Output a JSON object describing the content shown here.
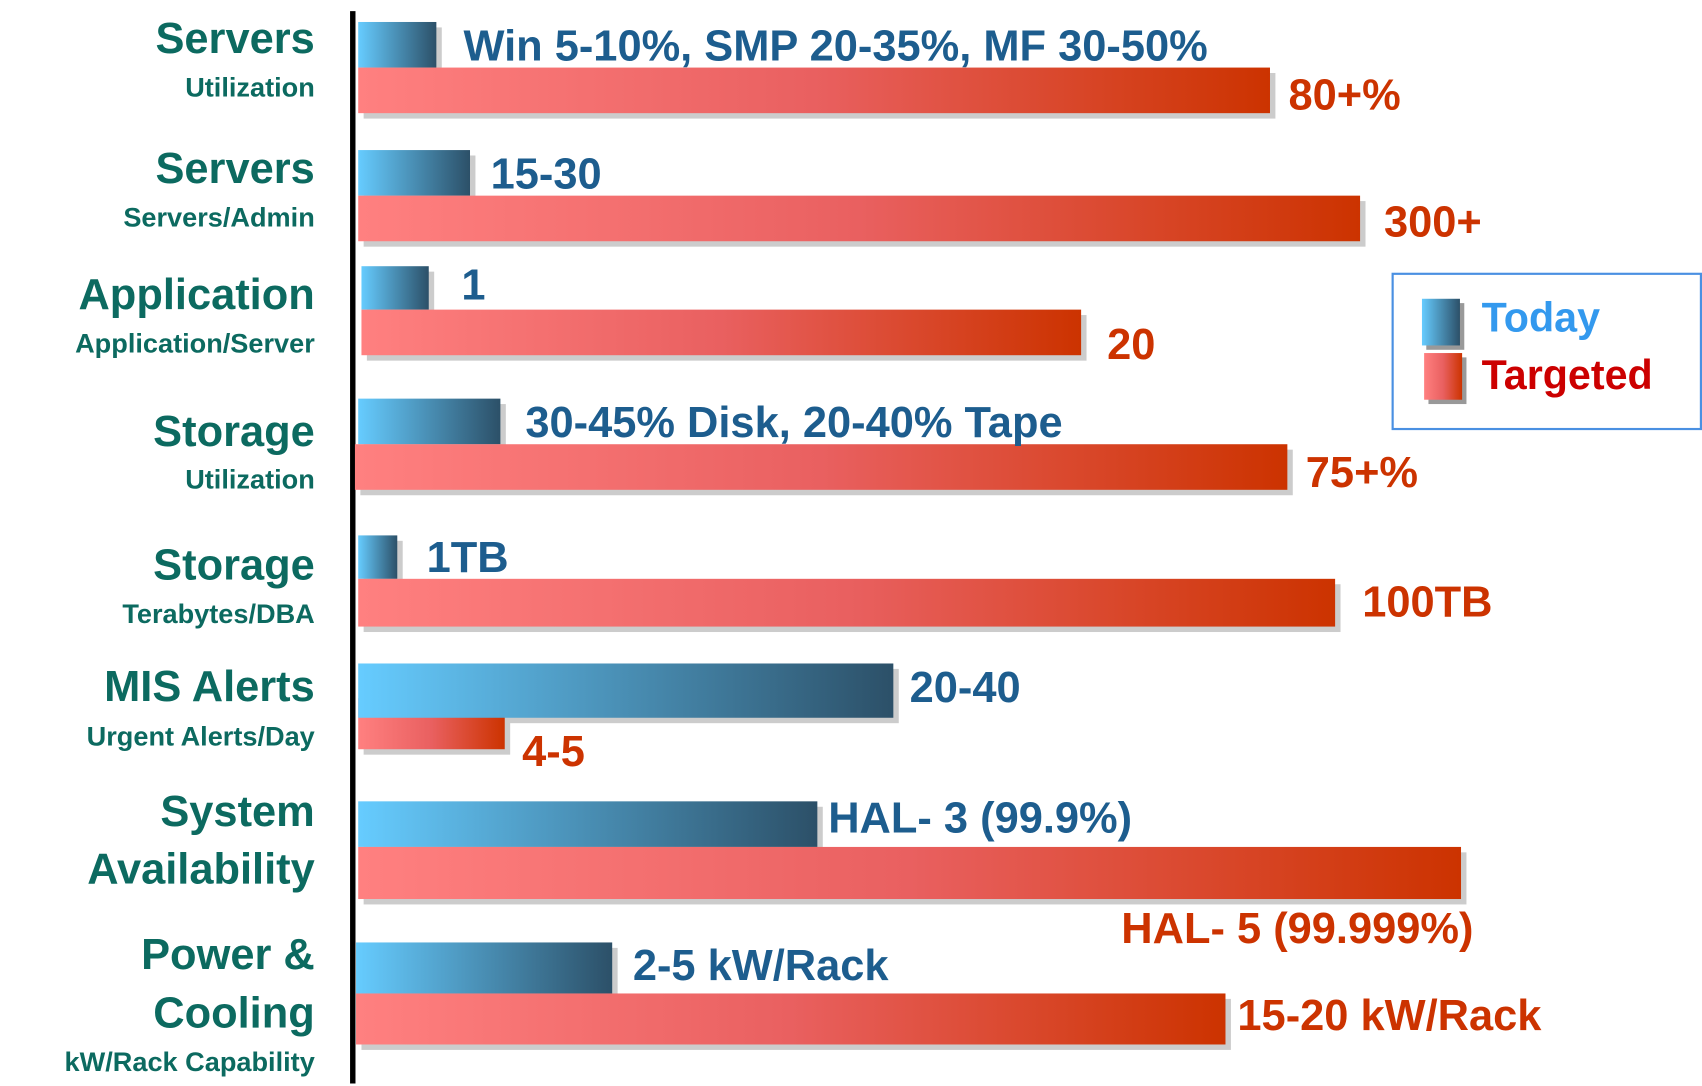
{
  "rows": [
    {
      "title_lines": [
        "Servers"
      ],
      "subtitle": "Utilization",
      "today": "Win 5-10%, SMP 20-35%, MF 30-50%",
      "targeted": "80+%"
    },
    {
      "title_lines": [
        "Servers"
      ],
      "subtitle": "Servers/Admin",
      "today": "15-30",
      "targeted": "300+"
    },
    {
      "title_lines": [
        "Application"
      ],
      "subtitle": "Application/Server",
      "today": "1",
      "targeted": "20"
    },
    {
      "title_lines": [
        "Storage"
      ],
      "subtitle": "Utilization",
      "today": "30-45% Disk, 20-40% Tape",
      "targeted": "75+%"
    },
    {
      "title_lines": [
        "Storage"
      ],
      "subtitle": "Terabytes/DBA",
      "today": "1TB",
      "targeted": "100TB"
    },
    {
      "title_lines": [
        "MIS Alerts"
      ],
      "subtitle": "Urgent Alerts/Day",
      "today": "20-40",
      "targeted": "4-5"
    },
    {
      "title_lines": [
        "System",
        "Availability"
      ],
      "today": "HAL- 3 (99.9%)",
      "targeted": "HAL- 5 (99.999%)"
    },
    {
      "title_lines": [
        "Power &",
        "Cooling"
      ],
      "subtitle": "kW/Rack Capability",
      "today": "2-5 kW/Rack",
      "targeted": "15-20 kW/Rack"
    }
  ],
  "legend": {
    "today": "Today",
    "targeted": "Targeted"
  }
}
